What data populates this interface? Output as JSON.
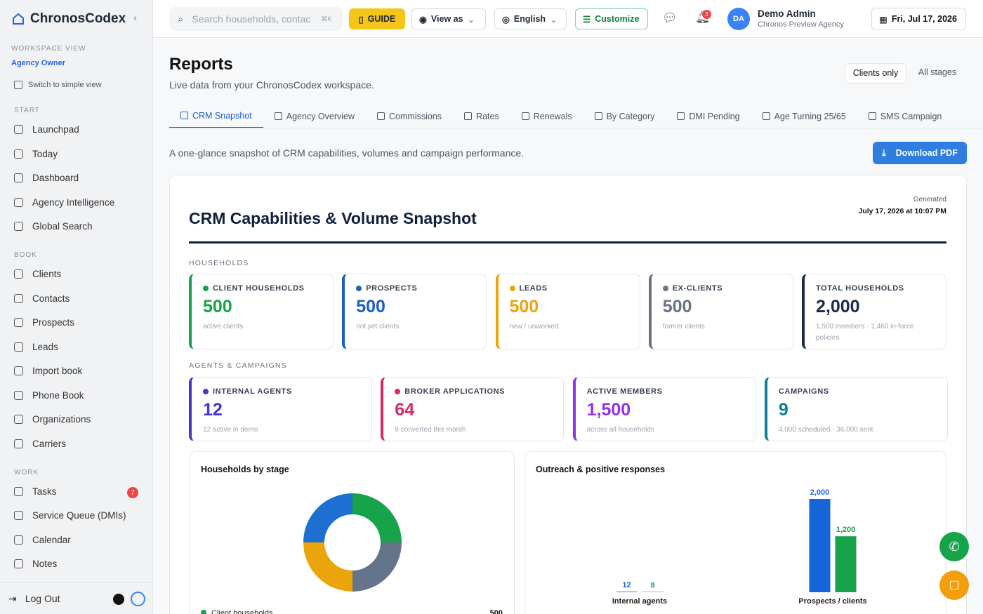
{
  "sidebar": {
    "brand": "ChronosCodex",
    "workspace_label": "WORKSPACE VIEW",
    "role": "Agency Owner",
    "switch": "Switch to simple view",
    "sections": [
      {
        "title": "START",
        "items": [
          {
            "label": "Launchpad"
          },
          {
            "label": "Today"
          },
          {
            "label": "Dashboard"
          },
          {
            "label": "Agency Intelligence"
          },
          {
            "label": "Global Search"
          }
        ]
      },
      {
        "title": "BOOK",
        "items": [
          {
            "label": "Clients"
          },
          {
            "label": "Contacts"
          },
          {
            "label": "Prospects"
          },
          {
            "label": "Leads"
          },
          {
            "label": "Import book"
          },
          {
            "label": "Phone Book"
          },
          {
            "label": "Organizations"
          },
          {
            "label": "Carriers"
          }
        ]
      },
      {
        "title": "WORK",
        "items": [
          {
            "label": "Tasks",
            "badge": 7
          },
          {
            "label": "Service Queue (DMIs)"
          },
          {
            "label": "Calendar"
          },
          {
            "label": "Notes"
          }
        ]
      }
    ],
    "logout": "Log Out"
  },
  "topbar": {
    "search": "Search households, contac",
    "shortcut": "⌘K",
    "guide": "GUIDE",
    "view_as": "View as",
    "language": "English",
    "customize": "Customize",
    "notifications": 3,
    "initials": "DA",
    "user": "Demo Admin",
    "agency": "Chronos Preview Agency",
    "date": "Fri, Jul 17, 2026"
  },
  "header": {
    "title": "Reports",
    "subtitle": "Live data from your ChronosCodex workspace.",
    "filters": [
      "Clients only",
      "All stages"
    ],
    "tabs": [
      "CRM Snapshot",
      "Agency Overview",
      "Commissions",
      "Rates",
      "Renewals",
      "By Category",
      "DMI Pending",
      "Age Turning 25/65",
      "SMS Campaign"
    ],
    "description": "A one-glance snapshot of CRM capabilities, volumes and campaign performance.",
    "download": "Download PDF"
  },
  "report": {
    "title": "CRM Capabilities & Volume Snapshot",
    "generated_label": "Generated",
    "generated": "July 17, 2026 at 10:07 PM",
    "households": {
      "label": "HOUSEHOLDS",
      "cards": [
        {
          "label": "CLIENT HOUSEHOLDS",
          "value": 500,
          "note": "active clients",
          "color": "#16a34a",
          "dot": true
        },
        {
          "label": "PROSPECTS",
          "value": 500,
          "note": "not yet clients",
          "color": "#1d5fbf",
          "dot": true
        },
        {
          "label": "LEADS",
          "value": 500,
          "note": "new / unworked",
          "color": "#eaa50b",
          "dot": true
        },
        {
          "label": "EX-CLIENTS",
          "value": 500,
          "note": "former clients",
          "color": "#6b7280",
          "dot": true
        },
        {
          "label": "TOTAL HOUSEHOLDS",
          "value": 2000,
          "value_label": "2,000",
          "note": "1,500 members · 1,460 in-force policies",
          "color": "#1e2a4a",
          "dot": false
        }
      ]
    },
    "agents": {
      "label": "AGENTS & CAMPAIGNS",
      "cards": [
        {
          "label": "INTERNAL AGENTS",
          "value": 12,
          "note": "12 active in demo",
          "color": "#4338ca",
          "dot": true
        },
        {
          "label": "BROKER APPLICATIONS",
          "value": 64,
          "note": "9 converted this month",
          "color": "#db2763",
          "dot": true
        },
        {
          "label": "ACTIVE MEMBERS",
          "value": 1500,
          "value_label": "1,500",
          "note": "across all households",
          "color": "#9333ea",
          "dot": false
        },
        {
          "label": "CAMPAIGNS",
          "value": 9,
          "note": "4,000 scheduled · 36,000 sent",
          "color": "#0e7f9a",
          "dot": false
        }
      ]
    }
  },
  "chart_data": [
    {
      "type": "pie",
      "title": "Households by stage",
      "categories": [
        "Client households",
        null,
        null,
        null
      ],
      "values": [
        500,
        500,
        500,
        500
      ],
      "colors": [
        "#16a34a",
        "#1d6fd1",
        "#eaa50b",
        "#64748b"
      ]
    },
    {
      "type": "bar",
      "title": "Outreach & positive responses",
      "categories": [
        "Internal agents",
        "Prospects / clients"
      ],
      "series": [
        {
          "color": "#1565d8",
          "values": [
            12,
            2000
          ],
          "value_labels": [
            "12",
            "2,000"
          ]
        },
        {
          "color": "#16a34a",
          "values": [
            8,
            1200
          ],
          "value_labels": [
            "8",
            "1,200"
          ]
        }
      ]
    }
  ]
}
